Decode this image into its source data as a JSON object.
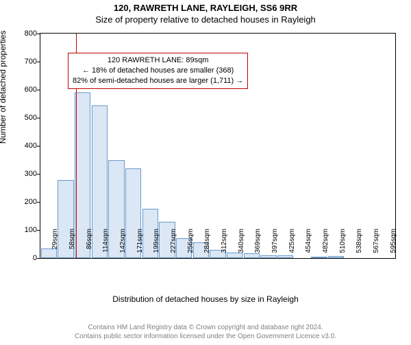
{
  "titles": {
    "line1": "120, RAWRETH LANE, RAYLEIGH, SS6 9RR",
    "line2": "Size of property relative to detached houses in Rayleigh"
  },
  "chart": {
    "type": "histogram",
    "ylabel": "Number of detached properties",
    "xlabel": "Distribution of detached houses by size in Rayleigh",
    "background_color": "#ffffff",
    "axis_color": "#000000",
    "ylim": [
      0,
      800
    ],
    "ytick_step": 100,
    "bar_fill": "#dbe7f5",
    "bar_stroke": "#6699cc",
    "bar_stroke_width": 1,
    "bar_relative_width": 0.95,
    "marker_line_color": "#c00000",
    "marker_line_x_index": 2.12,
    "x_labels": [
      "29sqm",
      "58sqm",
      "86sqm",
      "114sqm",
      "142sqm",
      "171sqm",
      "199sqm",
      "227sqm",
      "256sqm",
      "284sqm",
      "312sqm",
      "340sqm",
      "369sqm",
      "397sqm",
      "425sqm",
      "454sqm",
      "482sqm",
      "510sqm",
      "538sqm",
      "567sqm",
      "595sqm"
    ],
    "values": [
      35,
      278,
      590,
      545,
      350,
      320,
      175,
      130,
      70,
      55,
      30,
      20,
      18,
      10,
      10,
      0,
      5,
      8,
      0,
      0,
      0
    ],
    "tick_label_fontsize": 10,
    "axis_label_fontsize": 12
  },
  "annotation": {
    "border_color": "#c00000",
    "line1": "120 RAWRETH LANE: 89sqm",
    "line2": "← 18% of detached houses are smaller (368)",
    "line3": "82% of semi-detached houses are larger (1,711) →"
  },
  "footer": {
    "line1": "Contains HM Land Registry data © Crown copyright and database right 2024.",
    "line2": "Contains public sector information licensed under the Open Government Licence v3.0.",
    "color": "#808080"
  }
}
